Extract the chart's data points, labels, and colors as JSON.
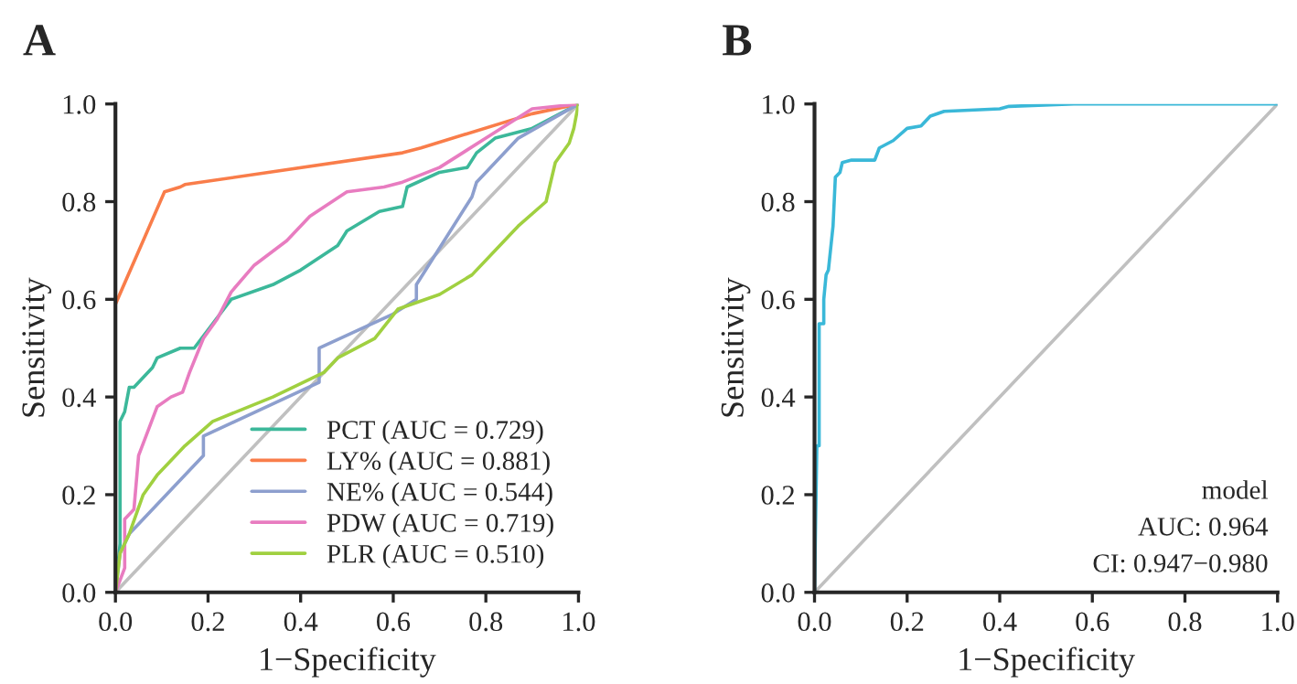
{
  "chart_data": [
    {
      "type": "line",
      "title": "A",
      "xlabel": "1−Specificity",
      "ylabel": "Sensitivity",
      "xlim": [
        0,
        1
      ],
      "ylim": [
        0,
        1
      ],
      "xticks": [
        {
          "value": 0,
          "label": "0.0"
        },
        {
          "value": 0.2,
          "label": "0.2"
        },
        {
          "value": 0.4,
          "label": "0.4"
        },
        {
          "value": 0.6,
          "label": "0.6"
        },
        {
          "value": 0.8,
          "label": "0.8"
        },
        {
          "value": 1,
          "label": "1.0"
        }
      ],
      "yticks": [
        {
          "value": 0,
          "label": "0.0"
        },
        {
          "value": 0.2,
          "label": "0.2"
        },
        {
          "value": 0.4,
          "label": "0.4"
        },
        {
          "value": 0.6,
          "label": "0.6"
        },
        {
          "value": 0.8,
          "label": "0.8"
        },
        {
          "value": 1,
          "label": "1.0"
        }
      ],
      "grid": false,
      "legend": "bottom right",
      "series": [
        {
          "color": "#c0c0c0",
          "x": [
            0,
            1
          ],
          "values": [
            0,
            1
          ]
        },
        {
          "name": "PCT (AUC = 0.729)",
          "color": "#3cb89a",
          "x": [
            0,
            0.01,
            0.01,
            0.02,
            0.03,
            0.04,
            0.06,
            0.08,
            0.09,
            0.14,
            0.17,
            0.21,
            0.25,
            0.34,
            0.4,
            0.48,
            0.5,
            0.57,
            0.62,
            0.63,
            0.7,
            0.76,
            0.78,
            0.82,
            0.9,
            1
          ],
          "values": [
            0,
            0.1,
            0.35,
            0.37,
            0.42,
            0.42,
            0.44,
            0.46,
            0.48,
            0.5,
            0.5,
            0.55,
            0.6,
            0.63,
            0.66,
            0.71,
            0.74,
            0.78,
            0.79,
            0.83,
            0.86,
            0.87,
            0.9,
            0.93,
            0.95,
            1
          ]
        },
        {
          "name": "LY% (AUC = 0.881)",
          "color": "#f97d4a",
          "x": [
            0,
            0,
            0.106,
            0.14,
            0.15,
            0.62,
            0.66,
            0.9,
            1
          ],
          "values": [
            0,
            0.59,
            0.82,
            0.83,
            0.835,
            0.9,
            0.91,
            0.98,
            1
          ]
        },
        {
          "name": "NE% (AUC = 0.544)",
          "color": "#8d9fce",
          "x": [
            0,
            0.01,
            0.03,
            0.19,
            0.19,
            0.44,
            0.44,
            0.6,
            0.65,
            0.65,
            0.77,
            0.78,
            0.87,
            1
          ],
          "values": [
            0,
            0.08,
            0.12,
            0.28,
            0.32,
            0.43,
            0.5,
            0.57,
            0.6,
            0.63,
            0.81,
            0.84,
            0.93,
            1
          ]
        },
        {
          "name": "PDW (AUC = 0.719)",
          "color": "#e87cc0",
          "x": [
            0,
            0.02,
            0.02,
            0.04,
            0.05,
            0.07,
            0.09,
            0.12,
            0.145,
            0.16,
            0.19,
            0.22,
            0.25,
            0.3,
            0.37,
            0.42,
            0.5,
            0.58,
            0.62,
            0.7,
            0.75,
            0.8,
            0.9,
            1
          ],
          "values": [
            0,
            0.05,
            0.15,
            0.17,
            0.28,
            0.33,
            0.38,
            0.4,
            0.41,
            0.45,
            0.52,
            0.56,
            0.615,
            0.67,
            0.72,
            0.77,
            0.82,
            0.83,
            0.84,
            0.87,
            0.9,
            0.93,
            0.99,
            1
          ]
        },
        {
          "name": "PLR (AUC = 0.510)",
          "color": "#a0d040",
          "x": [
            0,
            0.01,
            0.03,
            0.06,
            0.09,
            0.15,
            0.21,
            0.34,
            0.45,
            0.48,
            0.56,
            0.61,
            0.7,
            0.77,
            0.84,
            0.87,
            0.93,
            0.95,
            0.98,
            0.99,
            1
          ],
          "values": [
            0,
            0.08,
            0.12,
            0.2,
            0.24,
            0.3,
            0.35,
            0.4,
            0.45,
            0.48,
            0.52,
            0.58,
            0.61,
            0.65,
            0.72,
            0.75,
            0.8,
            0.88,
            0.92,
            0.95,
            1
          ]
        }
      ]
    },
    {
      "type": "line",
      "title": "B",
      "xlabel": "1−Specificity",
      "ylabel": "Sensitivity",
      "xlim": [
        0,
        1
      ],
      "ylim": [
        0,
        1
      ],
      "xticks": [
        {
          "value": 0,
          "label": "0.0"
        },
        {
          "value": 0.2,
          "label": "0.2"
        },
        {
          "value": 0.4,
          "label": "0.4"
        },
        {
          "value": 0.6,
          "label": "0.6"
        },
        {
          "value": 0.8,
          "label": "0.8"
        },
        {
          "value": 1,
          "label": "1.0"
        }
      ],
      "yticks": [
        {
          "value": 0,
          "label": "0.0"
        },
        {
          "value": 0.2,
          "label": "0.2"
        },
        {
          "value": 0.4,
          "label": "0.4"
        },
        {
          "value": 0.6,
          "label": "0.6"
        },
        {
          "value": 0.8,
          "label": "0.8"
        },
        {
          "value": 1,
          "label": "1.0"
        }
      ],
      "grid": false,
      "annotations": [
        "model",
        "AUC: 0.964",
        "CI: 0.947−0.980"
      ],
      "series": [
        {
          "color": "#c0c0c0",
          "x": [
            0,
            1
          ],
          "values": [
            0,
            1
          ]
        },
        {
          "color": "#3ab8d8",
          "x": [
            0,
            0.005,
            0.01,
            0.01,
            0.02,
            0.02,
            0.025,
            0.03,
            0.04,
            0.045,
            0.055,
            0.06,
            0.08,
            0.13,
            0.14,
            0.17,
            0.2,
            0.23,
            0.25,
            0.28,
            0.4,
            0.42,
            0.56,
            1
          ],
          "values": [
            0,
            0.3,
            0.3,
            0.55,
            0.55,
            0.6,
            0.65,
            0.66,
            0.75,
            0.85,
            0.86,
            0.88,
            0.885,
            0.885,
            0.91,
            0.925,
            0.95,
            0.955,
            0.975,
            0.985,
            0.99,
            0.995,
            1,
            1
          ]
        }
      ]
    }
  ]
}
